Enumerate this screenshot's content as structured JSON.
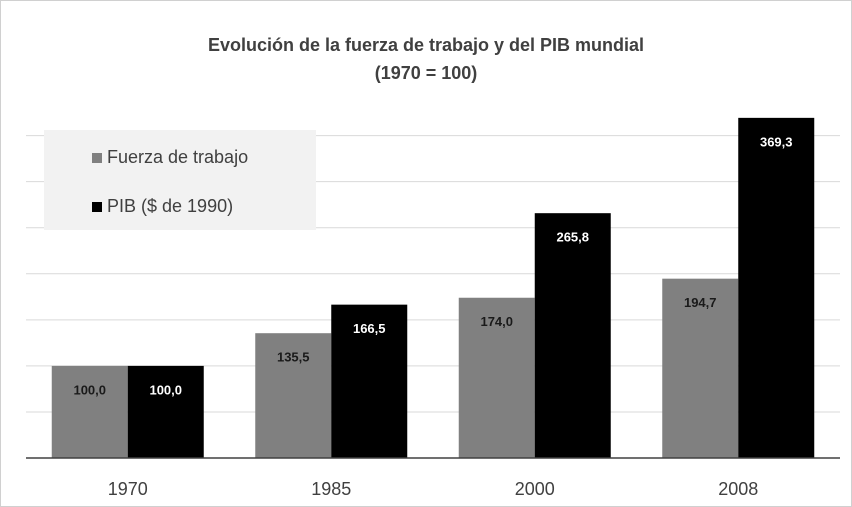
{
  "chart_data": {
    "type": "bar",
    "title": "Evolución de la fuerza de trabajo y del PIB mundial",
    "subtitle": "(1970 = 100)",
    "categories": [
      "1970",
      "1985",
      "2000",
      "2008"
    ],
    "series": [
      {
        "name": "Fuerza de trabajo",
        "color": "#808080",
        "values": [
          100.0,
          135.5,
          174.0,
          194.7
        ],
        "value_labels": [
          "100,0",
          "135,5",
          "174,0",
          "194,7"
        ]
      },
      {
        "name": "PIB ($ de 1990)",
        "color": "#000000",
        "values": [
          100.0,
          166.5,
          265.8,
          369.3
        ],
        "value_labels": [
          "100,0",
          "166,5",
          "265,8",
          "369,3"
        ]
      }
    ],
    "ylim": [
      0,
      380
    ],
    "yticks": [
      0,
      50,
      100,
      150,
      200,
      250,
      300,
      350
    ],
    "grid": true,
    "legend": "top-left"
  }
}
